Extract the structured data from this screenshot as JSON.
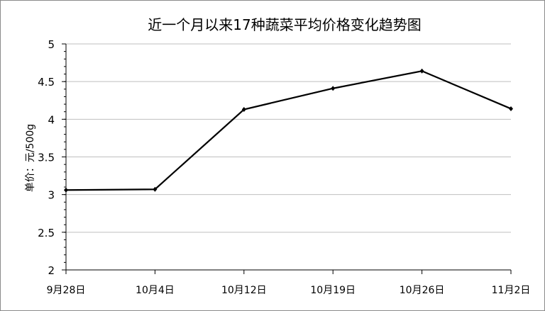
{
  "chart_data": {
    "type": "line",
    "title": "近一个月以来17种蔬菜平均价格变化趋势图",
    "xlabel": "",
    "ylabel": "单价：元/500g",
    "categories": [
      "9月28日",
      "10月4日",
      "10月12日",
      "10月19日",
      "10月26日",
      "11月2日"
    ],
    "values": [
      3.06,
      3.07,
      4.13,
      4.41,
      4.64,
      4.14
    ],
    "ylim": [
      2,
      5
    ],
    "yticks": [
      "2",
      "2.5",
      "3",
      "3.5",
      "4",
      "4.5",
      "5"
    ],
    "grid": true,
    "legend": "none",
    "line_color": "#000000",
    "grid_color": "#bfbfbf"
  }
}
